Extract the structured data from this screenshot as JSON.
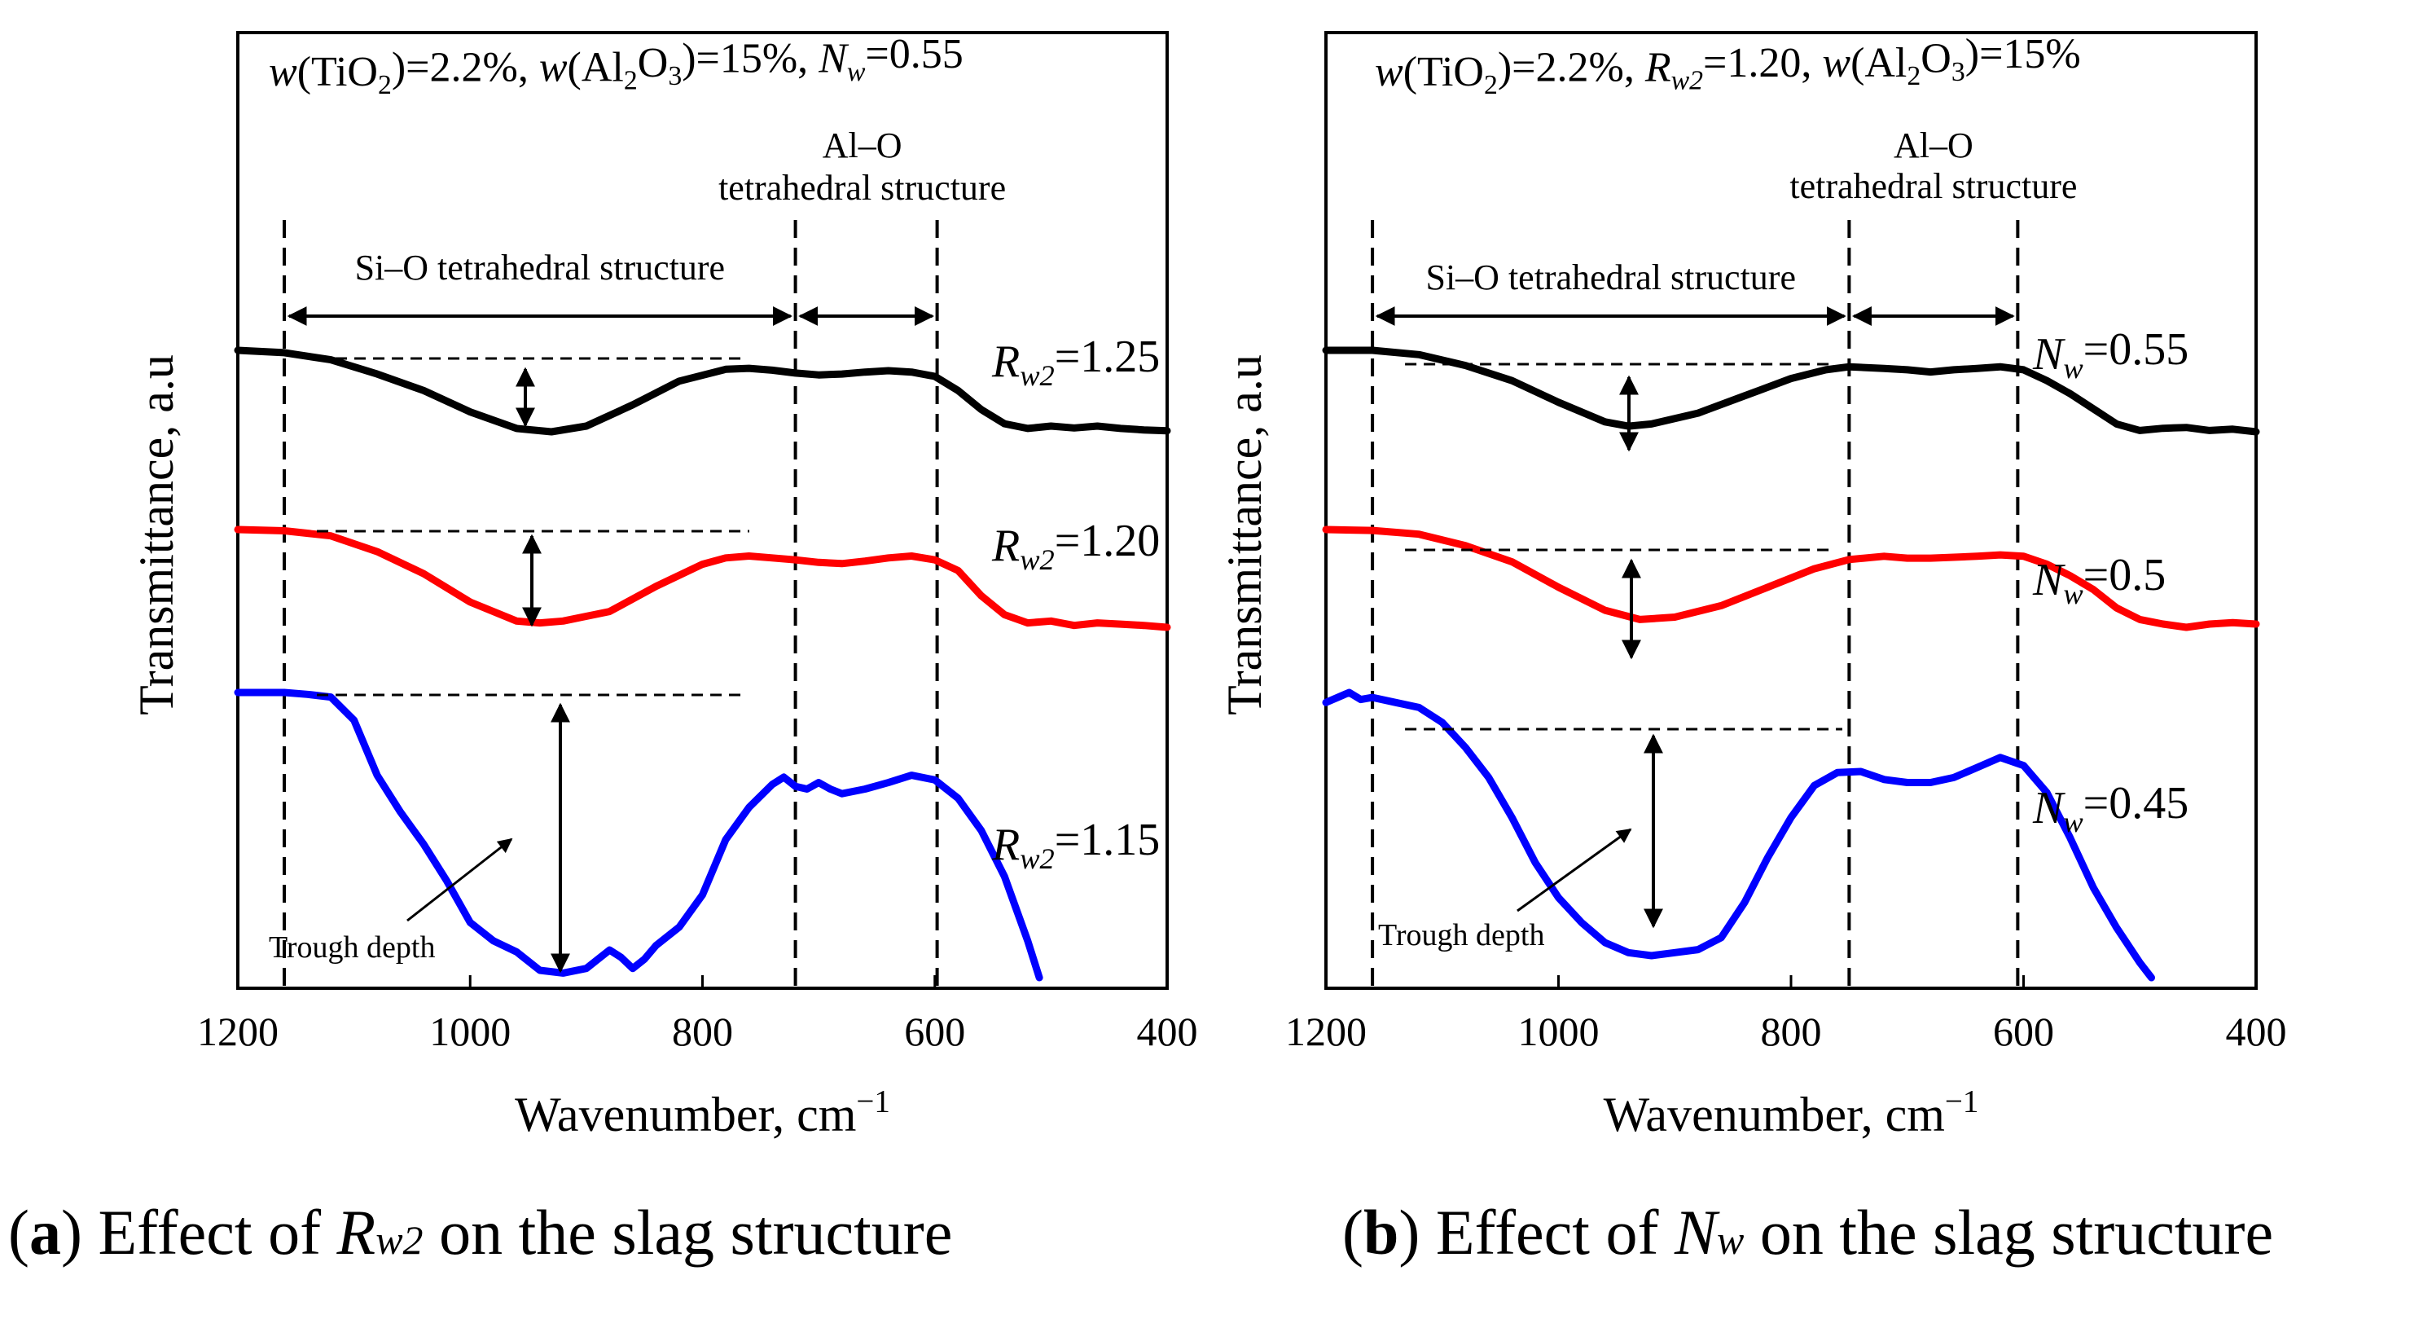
{
  "chart_data": [
    {
      "type": "line",
      "panel_caption": {
        "letter": "a",
        "prefix": "Effect of ",
        "symbol": "R",
        "symbol_sub": "w2",
        "suffix": " on the slag structure"
      },
      "title_parts": [
        "w(TiO",
        "2",
        ")=2.2%,  w(Al",
        "2",
        "O",
        "3",
        ")=15%,  N",
        "w",
        "=0.55"
      ],
      "xlabel": "Wavenumber, cm",
      "xlabel_sup": "−1",
      "ylabel": "Transmittance, a.u",
      "xlim": [
        1200,
        400
      ],
      "x_reversed": true,
      "xticks": [
        "1200",
        "1000",
        "800",
        "600",
        "400"
      ],
      "xtick_values": [
        1200,
        1000,
        800,
        600,
        400
      ],
      "ylim": [
        0,
        10
      ],
      "vlines": [
        1160,
        720,
        598
      ],
      "regions": [
        {
          "label": "Si–O tetrahedral structure",
          "from": 1160,
          "to": 720
        },
        {
          "label": "Al–O tetrahedral structure",
          "line1": "Al–O",
          "line2": "tetrahedral structure",
          "from": 720,
          "to": 598
        }
      ],
      "annotation": "Trough depth",
      "series": [
        {
          "name": "Rw2=1.25",
          "label_main": "R",
          "label_sub": "w2",
          "label_val": "=1.25",
          "color": "#000000",
          "x": [
            1200,
            1160,
            1120,
            1080,
            1040,
            1000,
            960,
            930,
            900,
            860,
            820,
            780,
            760,
            740,
            720,
            700,
            680,
            660,
            640,
            620,
            600,
            580,
            560,
            540,
            520,
            500,
            480,
            460,
            440,
            420,
            400
          ],
          "y": [
            8.1,
            8.05,
            7.9,
            7.6,
            7.25,
            6.8,
            6.45,
            6.38,
            6.5,
            6.95,
            7.45,
            7.7,
            7.72,
            7.68,
            7.62,
            7.58,
            7.6,
            7.64,
            7.67,
            7.64,
            7.55,
            7.25,
            6.85,
            6.55,
            6.45,
            6.5,
            6.46,
            6.5,
            6.45,
            6.42,
            6.4
          ]
        },
        {
          "name": "Rw2=1.20",
          "label_main": "R",
          "label_sub": "w2",
          "label_val": "=1.20",
          "color": "#ff0000",
          "x": [
            1200,
            1160,
            1120,
            1080,
            1040,
            1000,
            960,
            940,
            920,
            880,
            840,
            800,
            780,
            760,
            740,
            720,
            700,
            680,
            660,
            640,
            620,
            600,
            580,
            560,
            540,
            520,
            500,
            480,
            460,
            440,
            420,
            400
          ],
          "y": [
            5.2,
            5.18,
            5.1,
            4.85,
            4.5,
            4.05,
            3.75,
            3.72,
            3.75,
            3.9,
            4.3,
            4.65,
            4.75,
            4.78,
            4.75,
            4.72,
            4.68,
            4.66,
            4.7,
            4.75,
            4.78,
            4.72,
            4.55,
            4.15,
            3.85,
            3.72,
            3.75,
            3.68,
            3.72,
            3.7,
            3.68,
            3.65
          ]
        },
        {
          "name": "Rw2=1.15",
          "label_main": "R",
          "label_sub": "w2",
          "label_val": "=1.15",
          "color": "#0000ff",
          "x": [
            1200,
            1160,
            1140,
            1120,
            1100,
            1080,
            1060,
            1040,
            1020,
            1000,
            980,
            960,
            940,
            920,
            900,
            880,
            870,
            860,
            850,
            840,
            820,
            800,
            780,
            760,
            740,
            730,
            720,
            710,
            700,
            690,
            680,
            660,
            640,
            620,
            600,
            580,
            560,
            540,
            520,
            510
          ],
          "y": [
            3.1,
            3.1,
            3.08,
            3.05,
            2.8,
            2.2,
            1.8,
            1.45,
            1.05,
            0.6,
            0.4,
            0.28,
            0.08,
            0.05,
            0.1,
            0.3,
            0.22,
            0.1,
            0.2,
            0.35,
            0.55,
            0.9,
            1.5,
            1.85,
            2.1,
            2.18,
            2.08,
            2.05,
            2.12,
            2.05,
            2.0,
            2.05,
            2.12,
            2.2,
            2.15,
            1.95,
            1.6,
            1.1,
            0.4,
            0.0
          ]
        }
      ],
      "label_positions": [
        1.25,
        1.2,
        1.15
      ]
    },
    {
      "type": "line",
      "panel_caption": {
        "letter": "b",
        "prefix": "Effect of ",
        "symbol": "N",
        "symbol_sub": "w",
        "suffix": " on the slag structure"
      },
      "title_parts": [
        "w(TiO",
        "2",
        ")=2.2%,  R",
        "w2",
        "=1.20,  w(Al",
        "2",
        "O",
        "3",
        ")=15%"
      ],
      "xlabel": "Wavenumber, cm",
      "xlabel_sup": "−1",
      "ylabel": "Transmittance, a.u",
      "xlim": [
        1200,
        400
      ],
      "x_reversed": true,
      "xticks": [
        "1200",
        "1000",
        "800",
        "600",
        "400"
      ],
      "xtick_values": [
        1200,
        1000,
        800,
        600,
        400
      ],
      "ylim": [
        0,
        10
      ],
      "vlines": [
        1160,
        750,
        605
      ],
      "regions": [
        {
          "label": "Si–O tetrahedral structure",
          "from": 1160,
          "to": 750
        },
        {
          "label": "Al–O tetrahedral structure",
          "line1": "Al–O",
          "line2": "tetrahedral structure",
          "from": 750,
          "to": 605
        }
      ],
      "annotation": "Trough depth",
      "series": [
        {
          "name": "Nw=0.55",
          "label_main": "N",
          "label_sub": "w",
          "label_val": "=0.55",
          "color": "#000000",
          "x": [
            1200,
            1160,
            1120,
            1080,
            1040,
            1000,
            960,
            940,
            920,
            880,
            840,
            800,
            770,
            750,
            720,
            700,
            680,
            660,
            640,
            620,
            600,
            580,
            560,
            540,
            520,
            500,
            480,
            460,
            440,
            420,
            400
          ],
          "y": [
            8.0,
            8.0,
            7.9,
            7.65,
            7.3,
            6.8,
            6.35,
            6.25,
            6.3,
            6.55,
            6.95,
            7.35,
            7.55,
            7.62,
            7.58,
            7.55,
            7.5,
            7.55,
            7.58,
            7.62,
            7.55,
            7.3,
            7.0,
            6.65,
            6.3,
            6.15,
            6.2,
            6.22,
            6.15,
            6.18,
            6.12
          ]
        },
        {
          "name": "Nw=0.5",
          "label_main": "N",
          "label_sub": "w",
          "label_val": "=0.5",
          "color": "#ff0000",
          "x": [
            1200,
            1160,
            1120,
            1080,
            1040,
            1000,
            960,
            930,
            900,
            860,
            820,
            780,
            750,
            720,
            700,
            680,
            660,
            640,
            620,
            600,
            580,
            560,
            540,
            520,
            500,
            480,
            460,
            440,
            420,
            400
          ],
          "y": [
            5.3,
            5.28,
            5.2,
            4.95,
            4.6,
            4.05,
            3.55,
            3.35,
            3.4,
            3.65,
            4.05,
            4.45,
            4.65,
            4.72,
            4.68,
            4.68,
            4.7,
            4.72,
            4.75,
            4.72,
            4.55,
            4.3,
            4.0,
            3.6,
            3.35,
            3.25,
            3.18,
            3.25,
            3.28,
            3.25
          ]
        },
        {
          "name": "Nw=0.45",
          "label_main": "N",
          "label_sub": "w",
          "label_val": "=0.45",
          "color": "#0000ff",
          "x": [
            1200,
            1180,
            1170,
            1160,
            1140,
            1120,
            1100,
            1080,
            1060,
            1040,
            1020,
            1000,
            980,
            960,
            940,
            920,
            900,
            880,
            860,
            840,
            820,
            800,
            780,
            760,
            740,
            720,
            700,
            680,
            660,
            640,
            620,
            600,
            580,
            560,
            540,
            520,
            500,
            490
          ],
          "y": [
            2.75,
            2.85,
            2.78,
            2.8,
            2.75,
            2.7,
            2.55,
            2.3,
            2.0,
            1.6,
            1.15,
            0.8,
            0.55,
            0.35,
            0.25,
            0.22,
            0.25,
            0.28,
            0.4,
            0.75,
            1.2,
            1.6,
            1.92,
            2.05,
            2.06,
            1.98,
            1.95,
            1.95,
            2.0,
            2.1,
            2.2,
            2.12,
            1.85,
            1.4,
            0.9,
            0.5,
            0.15,
            0.0
          ]
        }
      ],
      "label_positions": [
        0.55,
        0.5,
        0.45
      ]
    }
  ]
}
